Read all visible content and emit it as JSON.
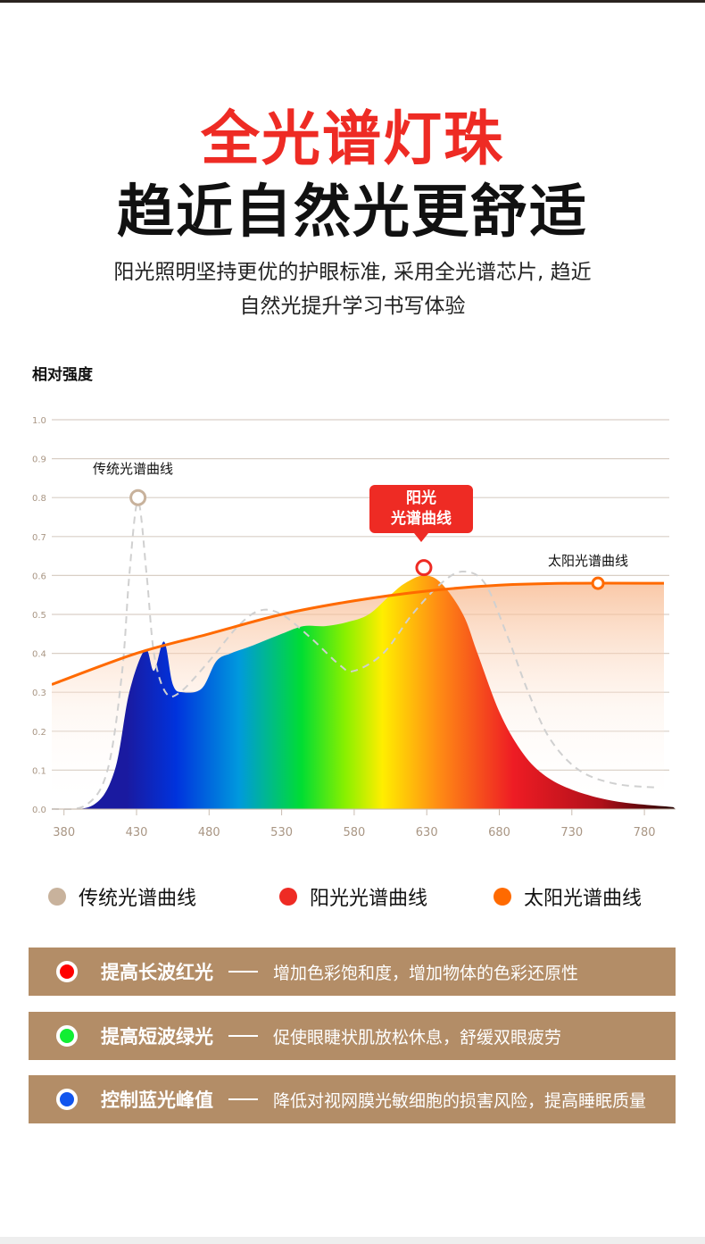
{
  "header": {
    "title_red": "全光谱灯珠",
    "title_black": "趋近自然光更舒适",
    "subtitle_line1": "阳光照明坚持更优的护眼标准, 采用全光谱芯片, 趋近",
    "subtitle_line2": "自然光提升学习书写体验"
  },
  "chart_data": {
    "type": "area",
    "title": "",
    "ylabel": "相对强度",
    "xlabel": "",
    "xlim": [
      370,
      800
    ],
    "ylim": [
      0,
      1.0
    ],
    "grid": true,
    "x_ticks": [
      "380",
      "430",
      "480",
      "530",
      "580",
      "630",
      "680",
      "730",
      "780"
    ],
    "y_ticks": [
      "0.0",
      "0.1",
      "0.2",
      "0.3",
      "0.4",
      "0.5",
      "0.6",
      "0.7",
      "0.8",
      "0.9",
      "1.0"
    ],
    "legend_position": "bottom",
    "series": [
      {
        "name": "传统光谱曲线",
        "color": "#c8b29c",
        "style": "dashed",
        "x": [
          370,
          395,
          410,
          420,
          425,
          431,
          437,
          442,
          450,
          460,
          480,
          500,
          515,
          530,
          550,
          570,
          580,
          600,
          620,
          640,
          655,
          670,
          685,
          700,
          715,
          735,
          760,
          790
        ],
        "y": [
          0,
          0.01,
          0.1,
          0.35,
          0.6,
          0.79,
          0.6,
          0.4,
          0.3,
          0.3,
          0.38,
          0.47,
          0.51,
          0.5,
          0.44,
          0.37,
          0.355,
          0.4,
          0.5,
          0.58,
          0.61,
          0.58,
          0.45,
          0.3,
          0.18,
          0.1,
          0.065,
          0.055
        ]
      },
      {
        "name": "阳光光谱曲线",
        "color": "#ee2b24",
        "style": "spectrum-fill",
        "x": [
          370,
          400,
          415,
          425,
          436,
          442,
          449,
          455,
          462,
          475,
          485,
          495,
          510,
          530,
          545,
          560,
          575,
          590,
          605,
          615,
          628,
          640,
          655,
          665,
          680,
          695,
          710,
          730,
          760,
          800
        ],
        "y": [
          0,
          0.01,
          0.1,
          0.3,
          0.41,
          0.355,
          0.43,
          0.32,
          0.3,
          0.31,
          0.38,
          0.4,
          0.42,
          0.45,
          0.47,
          0.47,
          0.48,
          0.5,
          0.55,
          0.58,
          0.6,
          0.58,
          0.5,
          0.4,
          0.25,
          0.15,
          0.09,
          0.05,
          0.02,
          0.005
        ]
      },
      {
        "name": "太阳光谱曲线",
        "color": "#ff6a00",
        "style": "line",
        "x": [
          370,
          430,
          480,
          530,
          580,
          630,
          680,
          730,
          790
        ],
        "y": [
          0.32,
          0.4,
          0.45,
          0.5,
          0.535,
          0.56,
          0.575,
          0.58,
          0.58
        ]
      }
    ],
    "annotations": [
      {
        "text": "传统光谱曲线",
        "x": 431,
        "y": 0.8
      },
      {
        "text": "阳光\n光谱曲线",
        "line1": "阳光",
        "line2": "光谱曲线",
        "x": 628,
        "y": 0.62
      },
      {
        "text": "太阳光谱曲线",
        "x": 748,
        "y": 0.58
      }
    ]
  },
  "legend": [
    {
      "label": "传统光谱曲线",
      "color": "#c8b29c"
    },
    {
      "label": "阳光光谱曲线",
      "color": "#ee2b24"
    },
    {
      "label": "太阳光谱曲线",
      "color": "#ff6a00"
    }
  ],
  "benefits": [
    {
      "title": "提高长波红光",
      "desc": "增加色彩饱和度，增加物体的色彩还原性",
      "color": "#ff0000"
    },
    {
      "title": "提高短波绿光",
      "desc": "促使眼睫状肌放松休息，舒缓双眼疲劳",
      "color": "#11ee33"
    },
    {
      "title": "控制蓝光峰值",
      "desc": "降低对视网膜光敏细胞的损害风险，提高睡眠质量",
      "color": "#1155ee"
    }
  ]
}
